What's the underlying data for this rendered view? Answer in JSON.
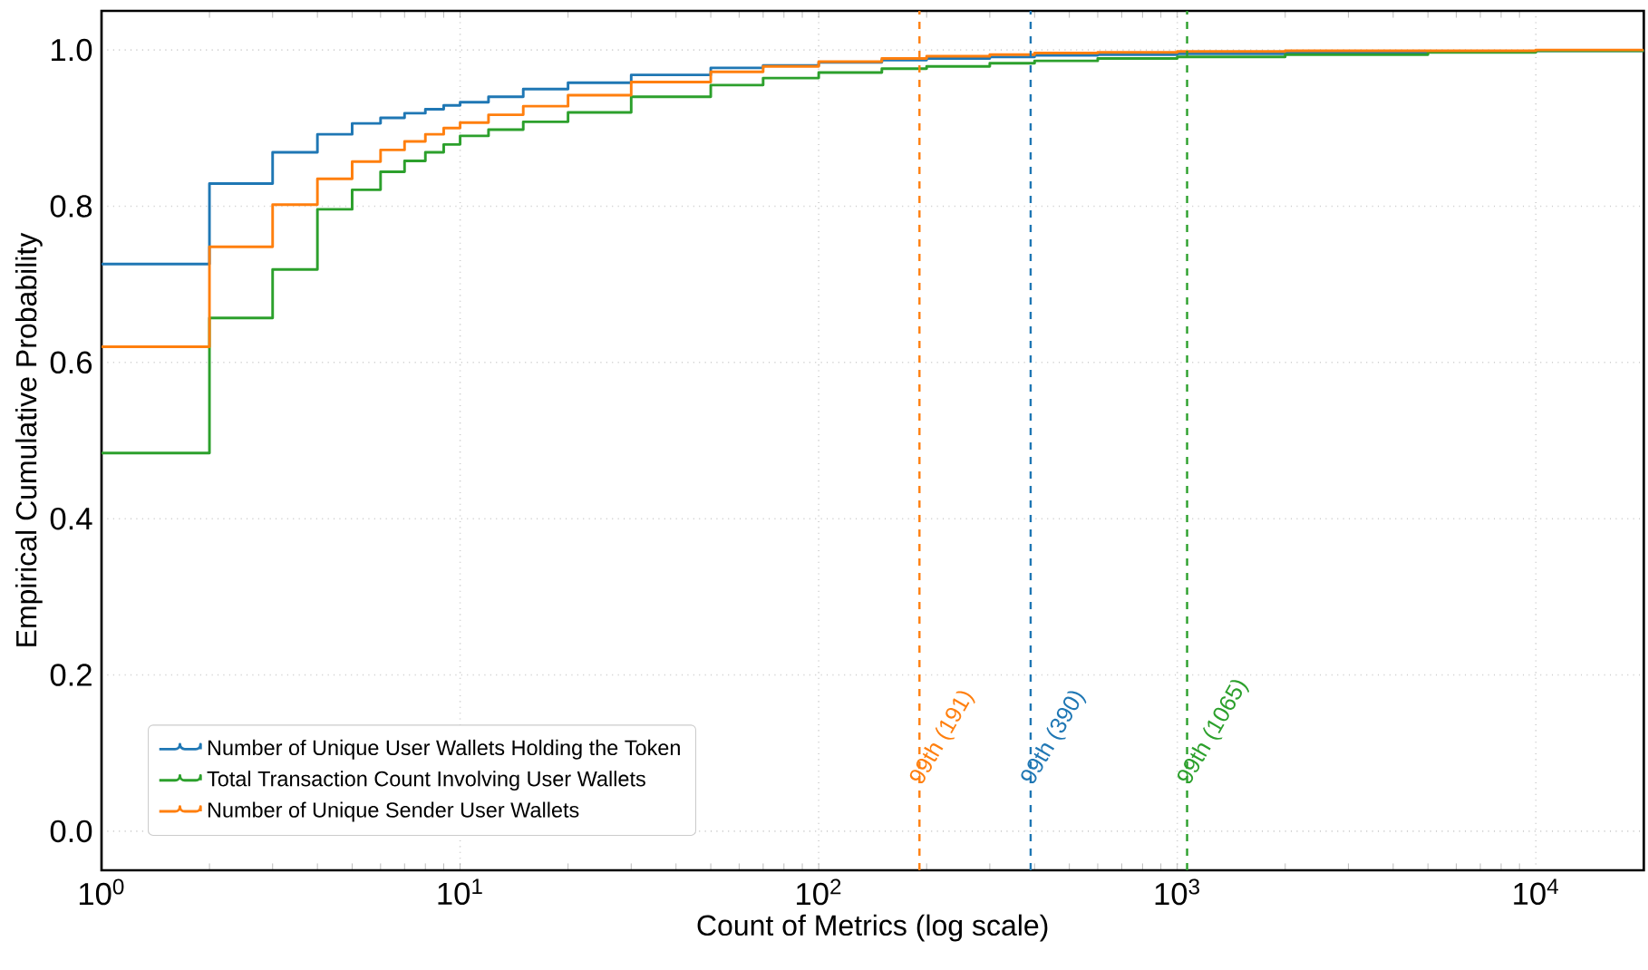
{
  "chart_data": {
    "type": "step",
    "xlabel": "Count of Metrics (log scale)",
    "ylabel": "Empirical Cumulative Probability",
    "log": "x",
    "grid": true,
    "legend": "bottom left",
    "line_style": "solid",
    "xlim": [
      1,
      20000
    ],
    "ylim": [
      -0.05,
      1.05
    ],
    "xticks": [
      {
        "value": 1,
        "label": "10$^{0}$"
      },
      {
        "value": 10,
        "label": "10$^{1}$"
      },
      {
        "value": 100,
        "label": "10$^{2}$"
      },
      {
        "value": 1000,
        "label": "10$^{3}$"
      },
      {
        "value": 10000,
        "label": "10$^{4}$"
      }
    ],
    "yticks": [
      {
        "value": 0,
        "label": "0.0"
      },
      {
        "value": 0.2,
        "label": "0.2"
      },
      {
        "value": 0.4,
        "label": "0.4"
      },
      {
        "value": 0.6,
        "label": "0.6"
      },
      {
        "value": 0.8,
        "label": "0.8"
      },
      {
        "value": 1,
        "label": "1.0"
      }
    ],
    "x": [
      1,
      2,
      3,
      4,
      5,
      6,
      7,
      8,
      9,
      10,
      12,
      15,
      20,
      30,
      50,
      70,
      100,
      150,
      200,
      300,
      400,
      600,
      1000,
      2000,
      5000,
      10000,
      20000
    ],
    "series": [
      {
        "name": "Number of Unique User Wallets Holding the Token",
        "color": "#1f77b4",
        "values": [
          0.726,
          0.829,
          0.869,
          0.892,
          0.906,
          0.913,
          0.919,
          0.924,
          0.929,
          0.933,
          0.94,
          0.95,
          0.958,
          0.968,
          0.977,
          0.98,
          0.984,
          0.987,
          0.989,
          0.991,
          0.993,
          0.994,
          0.995,
          0.997,
          0.998,
          0.999,
          1.0
        ]
      },
      {
        "name": "Total Transaction Count Involving User Wallets",
        "color": "#2ca02c",
        "values": [
          0.484,
          0.657,
          0.719,
          0.796,
          0.821,
          0.844,
          0.858,
          0.869,
          0.879,
          0.89,
          0.898,
          0.908,
          0.92,
          0.94,
          0.955,
          0.964,
          0.971,
          0.976,
          0.979,
          0.983,
          0.986,
          0.989,
          0.991,
          0.994,
          0.997,
          0.999,
          1.0
        ]
      },
      {
        "name": "Number of Unique Sender User Wallets",
        "color": "#ff7f0e",
        "values": [
          0.62,
          0.748,
          0.802,
          0.835,
          0.857,
          0.872,
          0.883,
          0.892,
          0.9,
          0.907,
          0.917,
          0.928,
          0.942,
          0.959,
          0.972,
          0.979,
          0.985,
          0.989,
          0.992,
          0.994,
          0.996,
          0.997,
          0.998,
          0.999,
          0.999,
          1.0,
          1.0
        ]
      }
    ],
    "ref_lines": [
      {
        "axis": "x",
        "value": 191,
        "label": "99th (191)",
        "color": "#ff7f0e",
        "line_style": "dashed"
      },
      {
        "axis": "x",
        "value": 390,
        "label": "99th (390)",
        "color": "#1f77b4",
        "line_style": "dashed"
      },
      {
        "axis": "x",
        "value": 1065,
        "label": "99th (1065)",
        "color": "#2ca02c",
        "line_style": "dashed"
      }
    ]
  }
}
